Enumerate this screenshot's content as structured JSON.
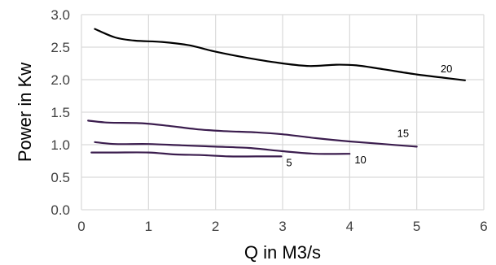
{
  "chart_data": {
    "type": "line",
    "title": "",
    "xlabel": "Q in M3/s",
    "ylabel": "Power in Kw",
    "xlim": [
      0,
      6
    ],
    "ylim": [
      0,
      3
    ],
    "x_ticks": [
      "0",
      "1",
      "2",
      "3",
      "4",
      "5",
      "6"
    ],
    "y_ticks": [
      "0.0",
      "0.5",
      "1.0",
      "1.5",
      "2.0",
      "2.5",
      "3.0"
    ],
    "grid": true,
    "legend": "none",
    "series": [
      {
        "name": "20",
        "color": "#000000",
        "x": [
          0.2,
          0.5,
          0.8,
          1.2,
          1.6,
          2.0,
          2.5,
          3.0,
          3.4,
          3.8,
          4.1,
          4.5,
          5.0,
          5.4,
          5.72
        ],
        "y": [
          2.78,
          2.65,
          2.6,
          2.58,
          2.53,
          2.43,
          2.33,
          2.25,
          2.21,
          2.23,
          2.22,
          2.16,
          2.08,
          2.03,
          1.99
        ]
      },
      {
        "name": "15",
        "color": "#3b1d4e",
        "x": [
          0.1,
          0.4,
          0.9,
          1.3,
          1.7,
          2.1,
          2.6,
          3.0,
          3.5,
          4.0,
          4.5,
          5.0
        ],
        "y": [
          1.37,
          1.34,
          1.33,
          1.29,
          1.24,
          1.21,
          1.19,
          1.16,
          1.1,
          1.05,
          1.01,
          0.97
        ]
      },
      {
        "name": "10",
        "color": "#3b1d4e",
        "x": [
          0.2,
          0.5,
          1.0,
          1.5,
          2.0,
          2.5,
          3.0,
          3.5,
          4.0
        ],
        "y": [
          1.04,
          1.01,
          1.01,
          0.99,
          0.97,
          0.95,
          0.9,
          0.86,
          0.86
        ]
      },
      {
        "name": "5",
        "color": "#3b1d4e",
        "x": [
          0.15,
          0.5,
          1.0,
          1.4,
          1.8,
          2.2,
          2.6,
          2.98
        ],
        "y": [
          0.88,
          0.88,
          0.88,
          0.85,
          0.84,
          0.82,
          0.82,
          0.82
        ]
      }
    ]
  }
}
